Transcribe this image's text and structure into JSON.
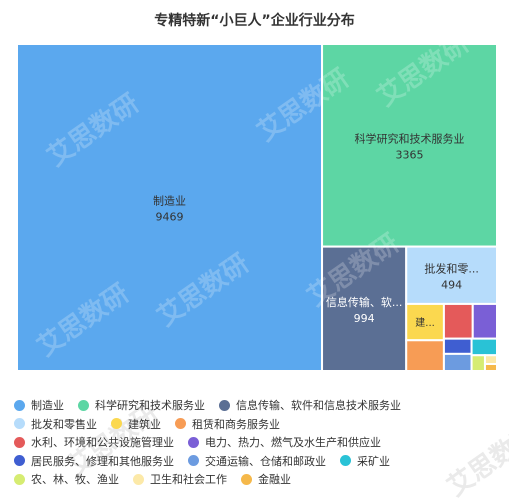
{
  "chart_data": {
    "type": "treemap",
    "title": "专精特新“小巨人”企业行业分布",
    "series": [
      {
        "name": "制造业",
        "value": 9469,
        "color": "#5ba8ee",
        "label": "制造业",
        "show_value": true
      },
      {
        "name": "科学研究和技术服务业",
        "value": 3365,
        "color": "#5dd6a4",
        "label": "科学研究和技术服务业",
        "show_value": true
      },
      {
        "name": "信息传输、软件和信息技术服务业",
        "value": 994,
        "color": "#5b6f94",
        "label": "信息传输、软...",
        "show_value": true
      },
      {
        "name": "批发和零售业",
        "value": 494,
        "color": "#b6dcfb",
        "label": "批发和零...",
        "show_value": true
      },
      {
        "name": "建筑业",
        "value": 130,
        "color": "#fbd84f",
        "label": "建...",
        "show_value": false
      },
      {
        "name": "租赁和商务服务业",
        "value": 110,
        "color": "#f79c55",
        "label": "",
        "show_value": false
      },
      {
        "name": "水利、环境和公共设施管理业",
        "value": 95,
        "color": "#e45a5a",
        "label": "",
        "show_value": false
      },
      {
        "name": "电力、热力、燃气及水生产和供应业",
        "value": 80,
        "color": "#7a5fd6",
        "label": "",
        "show_value": false
      },
      {
        "name": "居民服务、修理和其他服务业",
        "value": 40,
        "color": "#3f5ed1",
        "label": "",
        "show_value": false
      },
      {
        "name": "交通运输、仓储和邮政业",
        "value": 45,
        "color": "#6c9be0",
        "label": "",
        "show_value": false
      },
      {
        "name": "采矿业",
        "value": 40,
        "color": "#29c2d6",
        "label": "",
        "show_value": false
      },
      {
        "name": "农、林、牧、渔业",
        "value": 20,
        "color": "#d6ec72",
        "label": "",
        "show_value": false
      },
      {
        "name": "卫生和社会工作",
        "value": 10,
        "color": "#fce9a8",
        "label": "",
        "show_value": false
      },
      {
        "name": "金融业",
        "value": 8,
        "color": "#f5b84a",
        "label": "",
        "show_value": false
      }
    ],
    "legend_position": "bottom"
  },
  "watermark_text": "艾思数研"
}
